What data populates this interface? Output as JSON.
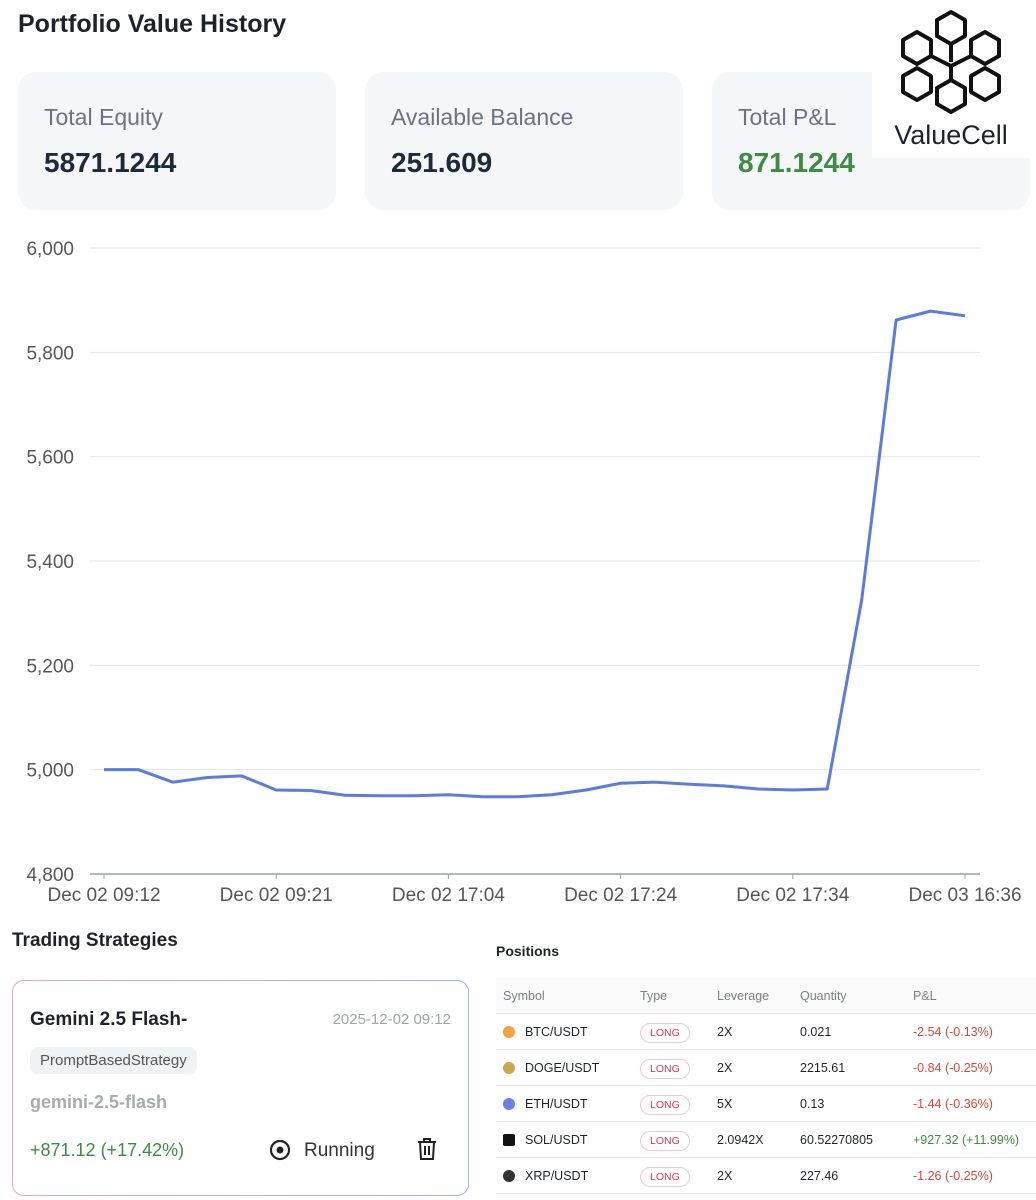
{
  "header": {
    "title": "Portfolio Value History"
  },
  "logo": {
    "text": "ValueCell"
  },
  "cards": [
    {
      "label": "Total Equity",
      "value": "5871.1244"
    },
    {
      "label": "Available Balance",
      "value": "251.609"
    },
    {
      "label": "Total P&L",
      "value": "871.1244"
    }
  ],
  "chart_data": {
    "type": "line",
    "categories": [
      "Dec 02 09:12",
      null,
      null,
      null,
      null,
      "Dec 02 09:21",
      null,
      null,
      null,
      null,
      "Dec 02 17:04",
      null,
      null,
      null,
      null,
      "Dec 02 17:24",
      null,
      null,
      null,
      null,
      "Dec 02 17:34",
      null,
      null,
      null,
      null,
      "Dec 03 16:36"
    ],
    "series": [
      {
        "name": "Portfolio Value",
        "color": "#5b7be0",
        "values": [
          5000,
          5000,
          4976,
          4985,
          4988,
          4961,
          4960,
          4951,
          4950,
          4950,
          4952,
          4948,
          4948,
          4952,
          4961,
          4974,
          4976,
          4972,
          4969,
          4963,
          4961,
          4963,
          5325,
          5862,
          5879,
          5870
        ]
      }
    ],
    "ylim": [
      4800,
      6000
    ],
    "yticks": [
      {
        "value": 4800,
        "label": "4,800"
      },
      {
        "value": 5000,
        "label": "5,000"
      },
      {
        "value": 5200,
        "label": "5,200"
      },
      {
        "value": 5400,
        "label": "5,400"
      },
      {
        "value": 5600,
        "label": "5,600"
      },
      {
        "value": 5800,
        "label": "5,800"
      },
      {
        "value": 6000,
        "label": "6,000"
      }
    ],
    "grid": true
  },
  "strategies": {
    "title": "Trading Strategies",
    "items": [
      {
        "name": "Gemini 2.5 Flash-",
        "date": "2025-12-02 09:12",
        "tag": "PromptBasedStrategy",
        "model": "gemini-2.5-flash",
        "pnl": "+871.12 (+17.42%)",
        "status": "Running"
      }
    ]
  },
  "positions": {
    "title": "Positions",
    "columns": [
      "Symbol",
      "Type",
      "Leverage",
      "Quantity",
      "P&L"
    ],
    "rows": [
      [
        "BTC/USDT",
        "LONG",
        "2X",
        "0.021",
        "-2.54 (-0.13%)"
      ],
      [
        "DOGE/USDT",
        "LONG",
        "2X",
        "2215.61",
        "-0.84 (-0.25%)"
      ],
      [
        "ETH/USDT",
        "LONG",
        "5X",
        "0.13",
        "-1.44 (-0.36%)"
      ],
      [
        "SOL/USDT",
        "LONG",
        "2.0942X",
        "60.52270805",
        "+927.32 (+11.99%)"
      ],
      [
        "XRP/USDT",
        "LONG",
        "2X",
        "227.46",
        "-1.26 (-0.25%)"
      ]
    ]
  }
}
